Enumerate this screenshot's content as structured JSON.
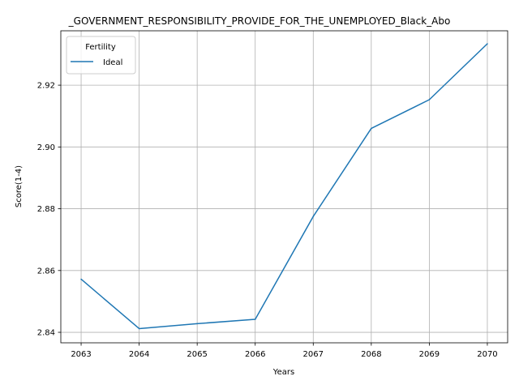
{
  "chart_data": {
    "type": "line",
    "title": "_GOVERNMENT_RESPONSIBILITY_PROVIDE_FOR_THE_UNEMPLOYED_Black_Abo",
    "xlabel": "Years",
    "ylabel": "Score(1-4)",
    "x": [
      2063,
      2064,
      2065,
      2066,
      2067,
      2068,
      2069,
      2070
    ],
    "x_ticks": [
      "2063",
      "2064",
      "2065",
      "2066",
      "2067",
      "2068",
      "2069",
      "2070"
    ],
    "y_ticks": [
      "2.84",
      "2.86",
      "2.88",
      "2.90",
      "2.92"
    ],
    "ylim": [
      2.8366,
      2.9376
    ],
    "xlim": [
      2062.65,
      2070.35
    ],
    "grid": true,
    "legend": {
      "title": "Fertility",
      "placement": "top-left"
    },
    "series": [
      {
        "name": "Ideal",
        "color": "#1f77b4",
        "values": [
          2.8572,
          2.8412,
          2.8428,
          2.8442,
          2.8775,
          2.906,
          2.9153,
          2.9334
        ]
      }
    ]
  }
}
